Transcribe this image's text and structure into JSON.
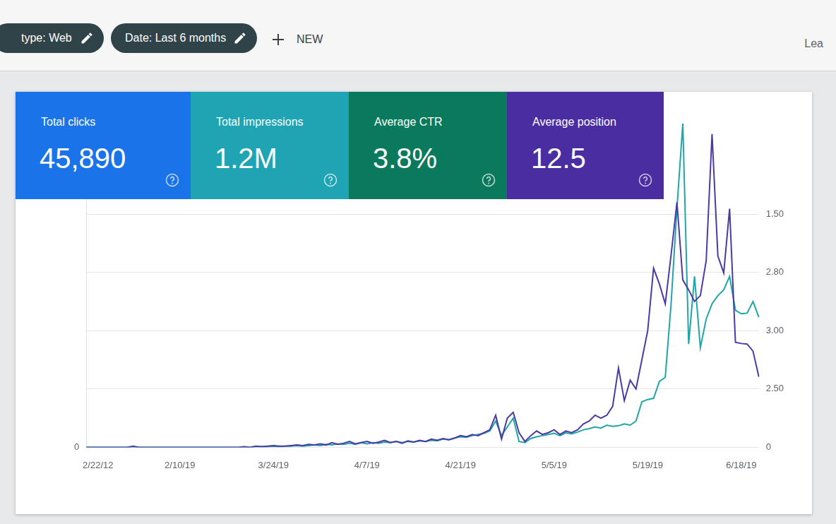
{
  "filters": [
    "type: Web",
    "Date: Last 6 months"
  ],
  "new_button": "NEW",
  "user": "Lea",
  "metrics": [
    {
      "label": "Total clicks",
      "value": "45,890",
      "color": "#1a73e8"
    },
    {
      "label": "Total impressions",
      "value": "1.2M",
      "color": "#1ea4b2"
    },
    {
      "label": "Average CTR",
      "value": "3.8%",
      "color": "#0b7a5c"
    },
    {
      "label": "Average position",
      "value": "12.5",
      "color": "#4a2ea1"
    }
  ],
  "chart_data": {
    "type": "line",
    "categories": [
      null,
      null,
      "2/22/12",
      null,
      null,
      null,
      null,
      null,
      null,
      null,
      null,
      null,
      null,
      null,
      null,
      null,
      "2/10/19",
      null,
      null,
      null,
      null,
      null,
      null,
      null,
      null,
      null,
      null,
      null,
      null,
      null,
      null,
      null,
      "3/24/19",
      null,
      null,
      null,
      null,
      null,
      null,
      null,
      null,
      null,
      null,
      null,
      null,
      null,
      null,
      null,
      "4/7/19",
      null,
      null,
      null,
      null,
      null,
      null,
      null,
      null,
      null,
      null,
      null,
      null,
      null,
      null,
      null,
      "4/21/19",
      null,
      null,
      null,
      null,
      null,
      null,
      null,
      null,
      null,
      null,
      null,
      null,
      null,
      null,
      null,
      "5/5/19",
      null,
      null,
      null,
      null,
      null,
      null,
      null,
      null,
      null,
      null,
      null,
      null,
      null,
      null,
      null,
      "5/19/19",
      null,
      null,
      null,
      null,
      null,
      null,
      null,
      null,
      null,
      null,
      null,
      null,
      null,
      null,
      null,
      "6/18/19",
      null,
      null,
      null
    ],
    "series": [
      {
        "color": "#4b3aa6",
        "values": [
          0,
          0,
          0,
          0,
          0,
          0,
          0,
          0,
          0.02,
          0,
          0,
          0,
          0,
          0,
          0,
          0,
          0,
          0,
          0,
          0,
          0,
          0,
          0,
          0,
          0,
          0,
          0,
          0.01,
          0,
          0.02,
          0.01,
          0.02,
          0.03,
          0.02,
          0.02,
          0.03,
          0.04,
          0.03,
          0.05,
          0.04,
          0.06,
          0.04,
          0.08,
          0.05,
          0.07,
          0.1,
          0.06,
          0.08,
          0.1,
          0.07,
          0.09,
          0.12,
          0.08,
          0.1,
          0.07,
          0.11,
          0.09,
          0.12,
          0.1,
          0.14,
          0.12,
          0.15,
          0.13,
          0.16,
          0.2,
          0.18,
          0.22,
          0.2,
          0.25,
          0.3,
          0.55,
          0.14,
          0.5,
          0.6,
          0.25,
          0.1,
          0.2,
          0.28,
          0.22,
          0.25,
          0.3,
          0.22,
          0.28,
          0.25,
          0.3,
          0.4,
          0.45,
          0.55,
          0.5,
          0.55,
          0.7,
          1.36,
          0.8,
          1.15,
          1.0,
          1.5,
          2.0,
          3.07,
          2.8,
          2.46,
          3.3,
          4.2,
          2.87,
          2.7,
          2.5,
          2.6,
          3.2,
          5.37,
          3.28,
          2.99,
          4.09,
          1.8,
          1.78,
          1.77,
          1.65,
          1.21
        ]
      },
      {
        "color": "#1fa5a7",
        "values": [
          0,
          0,
          0,
          0,
          0,
          0,
          0,
          0,
          0,
          0,
          0,
          0,
          0,
          0,
          0,
          0,
          0,
          0,
          0,
          0,
          0,
          0,
          0,
          0,
          0,
          0,
          0,
          0,
          0,
          0.01,
          0.01,
          0.01,
          0.02,
          0.01,
          0.02,
          0.02,
          0.03,
          0.02,
          0.03,
          0.04,
          0.03,
          0.05,
          0.04,
          0.06,
          0.05,
          0.07,
          0.05,
          0.08,
          0.06,
          0.08,
          0.07,
          0.09,
          0.08,
          0.1,
          0.08,
          0.1,
          0.09,
          0.11,
          0.1,
          0.12,
          0.11,
          0.14,
          0.13,
          0.16,
          0.18,
          0.17,
          0.2,
          0.22,
          0.24,
          0.28,
          0.45,
          0.2,
          0.35,
          0.5,
          0.1,
          0.08,
          0.15,
          0.18,
          0.2,
          0.22,
          0.24,
          0.2,
          0.25,
          0.23,
          0.26,
          0.3,
          0.32,
          0.35,
          0.33,
          0.38,
          0.36,
          0.37,
          0.4,
          0.38,
          0.45,
          0.78,
          0.82,
          0.84,
          1.13,
          1.2,
          2.46,
          4.1,
          5.55,
          1.77,
          2.93,
          1.71,
          2.2,
          2.46,
          2.6,
          2.7,
          2.93,
          2.35,
          2.29,
          2.3,
          2.5,
          2.23
        ]
      }
    ],
    "ylim": [
      0,
      6
    ],
    "yticks": [
      0
    ],
    "y2ticks": [
      "0",
      "2.50",
      "3.00",
      "2.80",
      "1.50"
    ],
    "grid": true
  }
}
